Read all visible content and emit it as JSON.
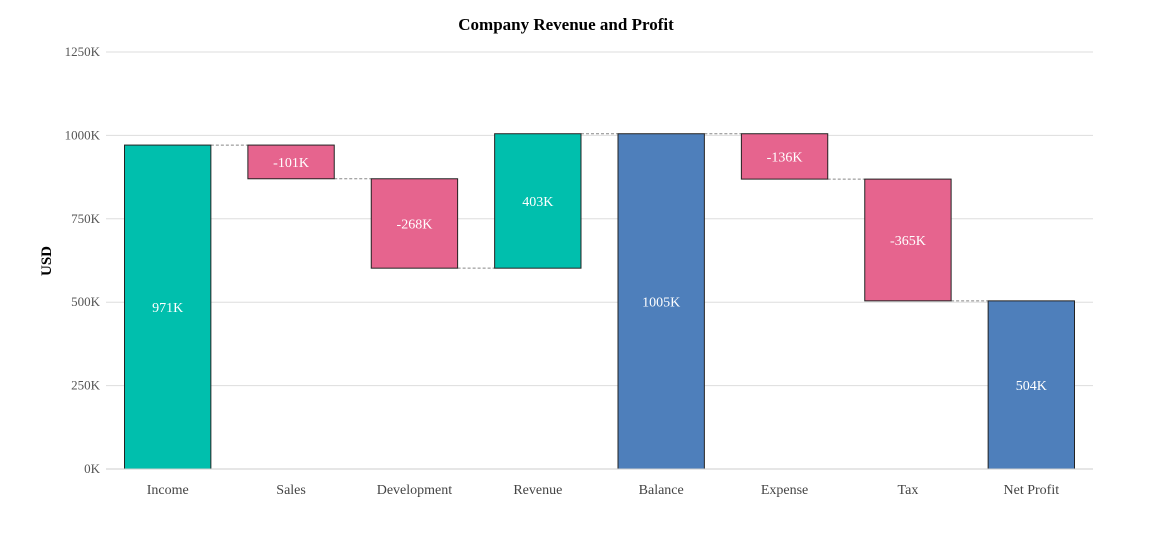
{
  "chart_data": {
    "type": "waterfall",
    "title": "Company Revenue and Profit",
    "xlabel": "",
    "ylabel": "USD",
    "ylim": [
      0,
      1250
    ],
    "y_ticks": [
      0,
      250,
      500,
      750,
      1000,
      1250
    ],
    "y_tick_labels": [
      "0K",
      "250K",
      "500K",
      "750K",
      "1000K",
      "1250K"
    ],
    "grid": true,
    "legend": "none",
    "colors": {
      "increase": "#00bfad",
      "decrease": "#e6648e",
      "total": "#4e7fbb",
      "connector": "#888888",
      "grid": "#dddddd"
    },
    "bars": [
      {
        "category": "Income",
        "kind": "increase",
        "start": 0,
        "end": 971,
        "label": "971K"
      },
      {
        "category": "Sales",
        "kind": "decrease",
        "start": 971,
        "end": 870,
        "label": "-101K"
      },
      {
        "category": "Development",
        "kind": "decrease",
        "start": 870,
        "end": 602,
        "label": "-268K"
      },
      {
        "category": "Revenue",
        "kind": "increase",
        "start": 602,
        "end": 1005,
        "label": "403K"
      },
      {
        "category": "Balance",
        "kind": "total",
        "start": 0,
        "end": 1005,
        "label": "1005K"
      },
      {
        "category": "Expense",
        "kind": "decrease",
        "start": 1005,
        "end": 869,
        "label": "-136K"
      },
      {
        "category": "Tax",
        "kind": "decrease",
        "start": 869,
        "end": 504,
        "label": "-365K"
      },
      {
        "category": "Net Profit",
        "kind": "total",
        "start": 0,
        "end": 504,
        "label": "504K"
      }
    ]
  }
}
